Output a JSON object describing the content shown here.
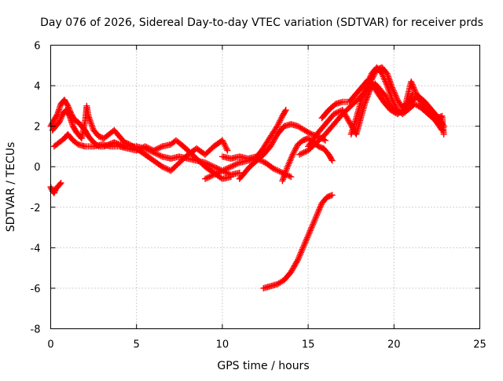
{
  "chart_data": {
    "type": "scatter",
    "title": "Day 076 of 2026, Sidereal Day-to-day VTEC variation (SDTVAR) for receiver prds",
    "xlabel": "GPS time / hours",
    "ylabel": "SDTVAR / TECUs",
    "xlim": [
      0,
      25
    ],
    "ylim": [
      -8,
      6
    ],
    "xticks": [
      0,
      5,
      10,
      15,
      20,
      25
    ],
    "yticks": [
      -8,
      -6,
      -4,
      -2,
      0,
      2,
      4,
      6
    ],
    "xtick_labels": [
      "0",
      "5",
      "10",
      "15",
      "20",
      "25"
    ],
    "ytick_labels": [
      "-8",
      "-6",
      "-4",
      "-2",
      "0",
      "2",
      "4",
      "6"
    ],
    "grid": true,
    "marker": "plus",
    "color": "#ff0000",
    "series": [
      {
        "name": "arc-1",
        "points": [
          [
            0.0,
            -1.0
          ],
          [
            0.1,
            -1.2
          ],
          [
            0.2,
            -1.3
          ],
          [
            0.3,
            -1.1
          ],
          [
            0.4,
            -1.0
          ],
          [
            0.5,
            -0.9
          ],
          [
            0.6,
            -0.8
          ]
        ]
      },
      {
        "name": "arc-2",
        "points": [
          [
            0.0,
            2.0
          ],
          [
            0.2,
            2.3
          ],
          [
            0.4,
            2.6
          ],
          [
            0.6,
            3.1
          ],
          [
            0.8,
            3.3
          ],
          [
            1.0,
            3.0
          ],
          [
            1.2,
            2.6
          ],
          [
            1.4,
            2.3
          ],
          [
            1.6,
            2.2
          ],
          [
            1.8,
            2.0
          ],
          [
            2.0,
            1.8
          ],
          [
            2.2,
            1.5
          ],
          [
            2.5,
            1.2
          ],
          [
            2.8,
            1.0
          ],
          [
            3.1,
            1.0
          ],
          [
            3.4,
            1.1
          ],
          [
            3.7,
            1.2
          ],
          [
            4.0,
            1.1
          ],
          [
            4.3,
            1.0
          ],
          [
            4.6,
            1.0
          ],
          [
            5.0,
            1.0
          ],
          [
            5.5,
            0.9
          ],
          [
            6.0,
            0.7
          ],
          [
            6.5,
            0.5
          ],
          [
            7.0,
            0.4
          ],
          [
            7.5,
            0.5
          ],
          [
            8.0,
            0.4
          ],
          [
            8.5,
            0.3
          ],
          [
            9.0,
            0.2
          ],
          [
            9.5,
            0.0
          ],
          [
            10.0,
            -0.2
          ],
          [
            10.5,
            -0.4
          ],
          [
            11.0,
            -0.3
          ]
        ]
      },
      {
        "name": "arc-3",
        "points": [
          [
            0.1,
            1.8
          ],
          [
            0.3,
            2.0
          ],
          [
            0.5,
            2.2
          ],
          [
            0.7,
            2.6
          ],
          [
            0.9,
            2.8
          ],
          [
            1.1,
            2.5
          ],
          [
            1.3,
            2.0
          ],
          [
            1.5,
            1.7
          ],
          [
            1.8,
            1.4
          ],
          [
            2.0,
            2.2
          ],
          [
            2.1,
            3.0
          ],
          [
            2.2,
            2.5
          ],
          [
            2.5,
            1.8
          ],
          [
            2.8,
            1.5
          ],
          [
            3.1,
            1.4
          ],
          [
            3.4,
            1.6
          ],
          [
            3.7,
            1.8
          ],
          [
            4.0,
            1.5
          ],
          [
            4.3,
            1.2
          ],
          [
            4.6,
            1.1
          ],
          [
            5.0,
            0.9
          ],
          [
            5.5,
            0.6
          ],
          [
            6.0,
            0.3
          ],
          [
            6.5,
            0.0
          ],
          [
            7.0,
            -0.2
          ],
          [
            7.5,
            0.2
          ],
          [
            8.0,
            0.6
          ],
          [
            8.5,
            0.9
          ],
          [
            9.0,
            0.6
          ],
          [
            9.5,
            1.0
          ],
          [
            10.0,
            1.3
          ],
          [
            10.3,
            0.8
          ]
        ]
      },
      {
        "name": "arc-4",
        "points": [
          [
            0.2,
            1.0
          ],
          [
            0.5,
            1.2
          ],
          [
            0.8,
            1.4
          ],
          [
            1.0,
            1.6
          ],
          [
            1.3,
            1.3
          ],
          [
            1.6,
            1.1
          ],
          [
            2.0,
            1.0
          ],
          [
            2.5,
            1.0
          ],
          [
            3.0,
            1.1
          ],
          [
            3.5,
            1.0
          ],
          [
            4.0,
            1.0
          ],
          [
            4.5,
            0.9
          ],
          [
            5.0,
            0.8
          ],
          [
            5.5,
            1.0
          ],
          [
            6.0,
            0.8
          ],
          [
            6.5,
            1.0
          ],
          [
            7.0,
            1.1
          ],
          [
            7.3,
            1.3
          ],
          [
            7.6,
            1.1
          ],
          [
            8.0,
            0.8
          ],
          [
            8.5,
            0.4
          ],
          [
            9.0,
            0.0
          ],
          [
            9.5,
            -0.3
          ],
          [
            10.0,
            -0.6
          ],
          [
            10.5,
            -0.5
          ]
        ]
      },
      {
        "name": "arc-5",
        "points": [
          [
            9.0,
            -0.6
          ],
          [
            9.5,
            -0.4
          ],
          [
            10.0,
            -0.2
          ],
          [
            10.5,
            0.0
          ],
          [
            11.0,
            0.2
          ],
          [
            11.5,
            0.3
          ],
          [
            12.0,
            0.4
          ],
          [
            12.5,
            0.2
          ],
          [
            13.0,
            -0.1
          ],
          [
            13.5,
            -0.3
          ],
          [
            14.0,
            -0.5
          ]
        ]
      },
      {
        "name": "arc-6",
        "points": [
          [
            10.0,
            0.5
          ],
          [
            10.5,
            0.4
          ],
          [
            11.0,
            0.5
          ],
          [
            11.5,
            0.4
          ],
          [
            12.0,
            0.5
          ],
          [
            12.3,
            0.8
          ],
          [
            12.6,
            1.2
          ],
          [
            12.9,
            1.6
          ],
          [
            13.2,
            2.0
          ],
          [
            13.5,
            2.5
          ],
          [
            13.7,
            2.8
          ]
        ]
      },
      {
        "name": "arc-7",
        "points": [
          [
            11.0,
            -0.6
          ],
          [
            11.3,
            -0.3
          ],
          [
            11.6,
            0.0
          ],
          [
            12.0,
            0.3
          ],
          [
            12.4,
            0.6
          ],
          [
            12.8,
            1.0
          ],
          [
            13.2,
            1.6
          ],
          [
            13.6,
            2.0
          ],
          [
            14.0,
            2.1
          ],
          [
            14.4,
            2.0
          ],
          [
            14.8,
            1.8
          ],
          [
            15.2,
            1.6
          ],
          [
            15.6,
            1.5
          ],
          [
            16.0,
            1.3
          ]
        ]
      },
      {
        "name": "arc-8",
        "points": [
          [
            13.5,
            -0.7
          ],
          [
            13.8,
            0.0
          ],
          [
            14.1,
            0.6
          ],
          [
            14.4,
            1.1
          ],
          [
            14.7,
            1.3
          ],
          [
            15.0,
            1.4
          ],
          [
            15.3,
            1.2
          ],
          [
            15.6,
            1.0
          ],
          [
            15.9,
            0.9
          ],
          [
            16.2,
            0.6
          ],
          [
            16.4,
            0.3
          ]
        ]
      },
      {
        "name": "arc-9",
        "points": [
          [
            12.4,
            -6.0
          ],
          [
            12.8,
            -5.9
          ],
          [
            13.2,
            -5.8
          ],
          [
            13.6,
            -5.6
          ],
          [
            14.0,
            -5.2
          ],
          [
            14.4,
            -4.6
          ],
          [
            14.8,
            -3.8
          ],
          [
            15.2,
            -3.0
          ],
          [
            15.5,
            -2.4
          ],
          [
            15.8,
            -1.8
          ],
          [
            16.1,
            -1.5
          ],
          [
            16.4,
            -1.4
          ]
        ]
      },
      {
        "name": "arc-10",
        "points": [
          [
            14.5,
            0.6
          ],
          [
            15.0,
            0.8
          ],
          [
            15.5,
            1.2
          ],
          [
            16.0,
            1.6
          ],
          [
            16.5,
            2.1
          ],
          [
            17.0,
            2.6
          ],
          [
            17.5,
            3.0
          ],
          [
            18.0,
            3.4
          ],
          [
            18.4,
            3.8
          ],
          [
            18.7,
            4.3
          ],
          [
            19.0,
            4.8
          ],
          [
            19.3,
            4.9
          ],
          [
            19.6,
            4.6
          ],
          [
            19.9,
            3.9
          ],
          [
            20.2,
            3.3
          ],
          [
            20.5,
            2.9
          ],
          [
            20.8,
            3.2
          ],
          [
            21.1,
            3.6
          ]
        ]
      },
      {
        "name": "arc-11",
        "points": [
          [
            15.0,
            1.0
          ],
          [
            15.5,
            1.6
          ],
          [
            16.0,
            2.1
          ],
          [
            16.5,
            2.6
          ],
          [
            17.0,
            2.8
          ],
          [
            17.4,
            2.2
          ],
          [
            17.8,
            1.6
          ],
          [
            18.0,
            2.2
          ],
          [
            18.3,
            3.1
          ],
          [
            18.6,
            3.8
          ],
          [
            18.9,
            4.1
          ],
          [
            19.2,
            3.8
          ],
          [
            19.5,
            3.5
          ],
          [
            19.8,
            3.0
          ],
          [
            20.1,
            2.7
          ],
          [
            20.4,
            2.7
          ],
          [
            20.7,
            2.9
          ],
          [
            21.0,
            3.2
          ],
          [
            21.4,
            3.5
          ],
          [
            21.8,
            3.2
          ],
          [
            22.2,
            2.8
          ],
          [
            22.6,
            2.4
          ],
          [
            22.9,
            2.0
          ]
        ]
      },
      {
        "name": "arc-12",
        "points": [
          [
            15.8,
            2.4
          ],
          [
            16.2,
            2.8
          ],
          [
            16.6,
            3.1
          ],
          [
            17.0,
            3.2
          ],
          [
            17.4,
            3.2
          ],
          [
            17.8,
            3.6
          ],
          [
            18.2,
            4.0
          ],
          [
            18.5,
            4.3
          ],
          [
            18.7,
            4.1
          ],
          [
            19.0,
            3.7
          ],
          [
            19.4,
            3.2
          ],
          [
            19.8,
            2.8
          ],
          [
            20.2,
            2.6
          ],
          [
            20.6,
            2.8
          ],
          [
            21.0,
            4.2
          ],
          [
            21.4,
            3.4
          ],
          [
            21.8,
            2.9
          ],
          [
            22.2,
            2.6
          ],
          [
            22.5,
            2.4
          ],
          [
            22.8,
            2.5
          ],
          [
            22.9,
            1.6
          ]
        ]
      },
      {
        "name": "arc-13",
        "points": [
          [
            17.5,
            1.6
          ],
          [
            17.8,
            2.4
          ],
          [
            18.1,
            3.3
          ],
          [
            18.4,
            4.0
          ],
          [
            18.7,
            4.6
          ],
          [
            19.0,
            4.9
          ],
          [
            19.3,
            4.6
          ],
          [
            19.6,
            4.0
          ],
          [
            19.9,
            3.3
          ],
          [
            20.2,
            2.8
          ],
          [
            20.5,
            2.6
          ],
          [
            20.8,
            2.8
          ],
          [
            21.2,
            3.1
          ],
          [
            21.6,
            2.9
          ],
          [
            22.0,
            2.6
          ],
          [
            22.4,
            2.3
          ],
          [
            22.8,
            1.8
          ]
        ]
      }
    ]
  }
}
